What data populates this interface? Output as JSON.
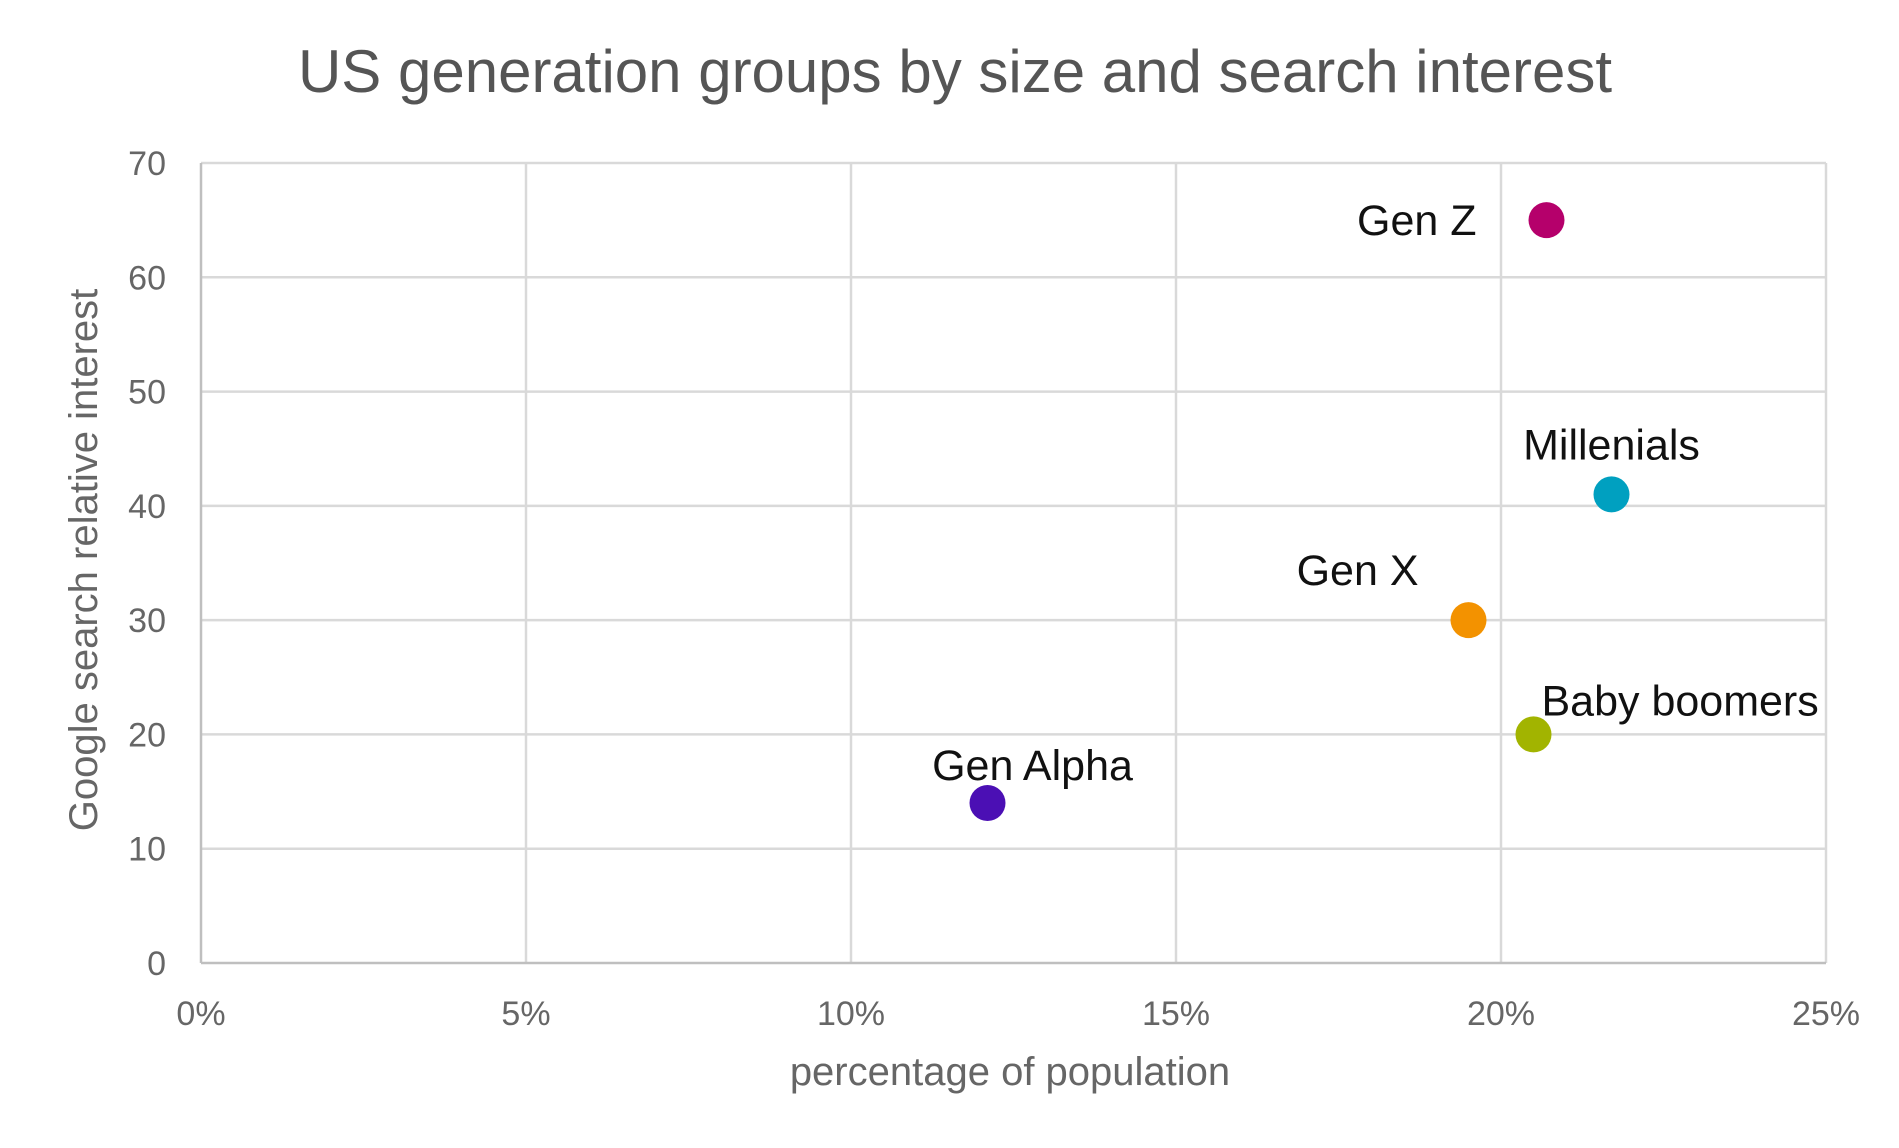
{
  "chart_data": {
    "type": "scatter",
    "title": "US generation groups by size and search interest",
    "xlabel": "percentage of population",
    "ylabel": "Google search relative interest",
    "xlim": [
      0,
      25
    ],
    "ylim": [
      0,
      70
    ],
    "x_ticks": [
      0,
      5,
      10,
      15,
      20,
      25
    ],
    "x_tick_labels": [
      "0%",
      "5%",
      "10%",
      "15%",
      "20%",
      "25%"
    ],
    "y_ticks": [
      0,
      10,
      20,
      30,
      40,
      50,
      60,
      70
    ],
    "y_tick_labels": [
      "0",
      "10",
      "20",
      "30",
      "40",
      "50",
      "60",
      "70"
    ],
    "grid": true,
    "legend": "none",
    "points": [
      {
        "label": "Gen Z",
        "x": 20.7,
        "y": 65,
        "color": "#b5006b"
      },
      {
        "label": "Millenials",
        "x": 21.7,
        "y": 41,
        "color": "#00a0c0"
      },
      {
        "label": "Gen X",
        "x": 19.5,
        "y": 30,
        "color": "#f39200"
      },
      {
        "label": "Baby boomers",
        "x": 20.5,
        "y": 20,
        "color": "#a2b400"
      },
      {
        "label": "Gen Alpha",
        "x": 12.1,
        "y": 14,
        "color": "#4b0fb4"
      }
    ]
  }
}
